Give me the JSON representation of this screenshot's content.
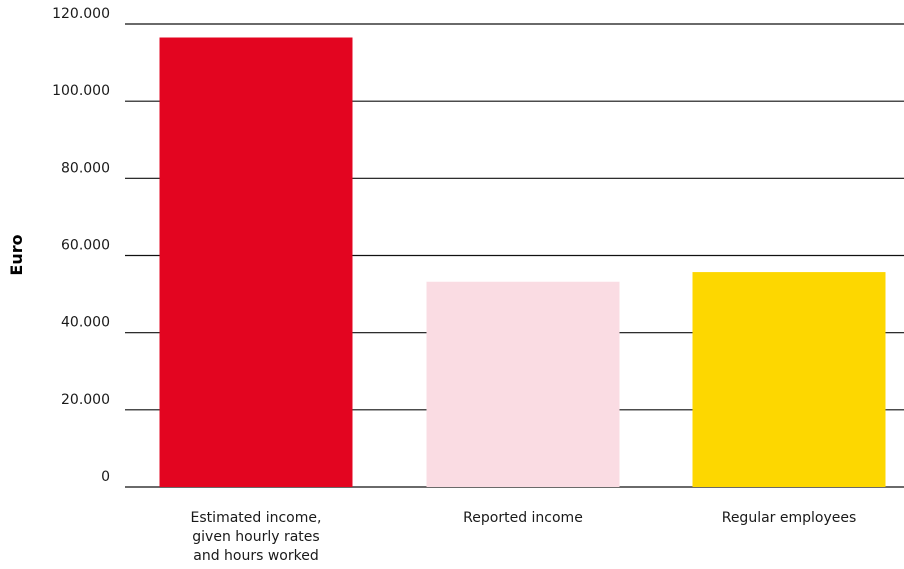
{
  "chart_data": {
    "type": "bar",
    "title": "",
    "xlabel": "",
    "ylabel": "Euro",
    "ylim": [
      0,
      120000
    ],
    "y_ticks": [
      0,
      20000,
      40000,
      60000,
      80000,
      100000,
      120000
    ],
    "y_tick_labels": [
      "0",
      "20.000",
      "40.000",
      "60.000",
      "80.000",
      "100.000",
      "120.000"
    ],
    "grid": true,
    "legend": "none",
    "categories": [
      [
        "Estimated income,",
        "given hourly rates",
        "and hours worked"
      ],
      [
        "Reported income"
      ],
      [
        "Regular employees"
      ]
    ],
    "values": [
      116500,
      53200,
      55700
    ],
    "colors": [
      "#e30520",
      "#fadce3",
      "#fdd700"
    ]
  }
}
